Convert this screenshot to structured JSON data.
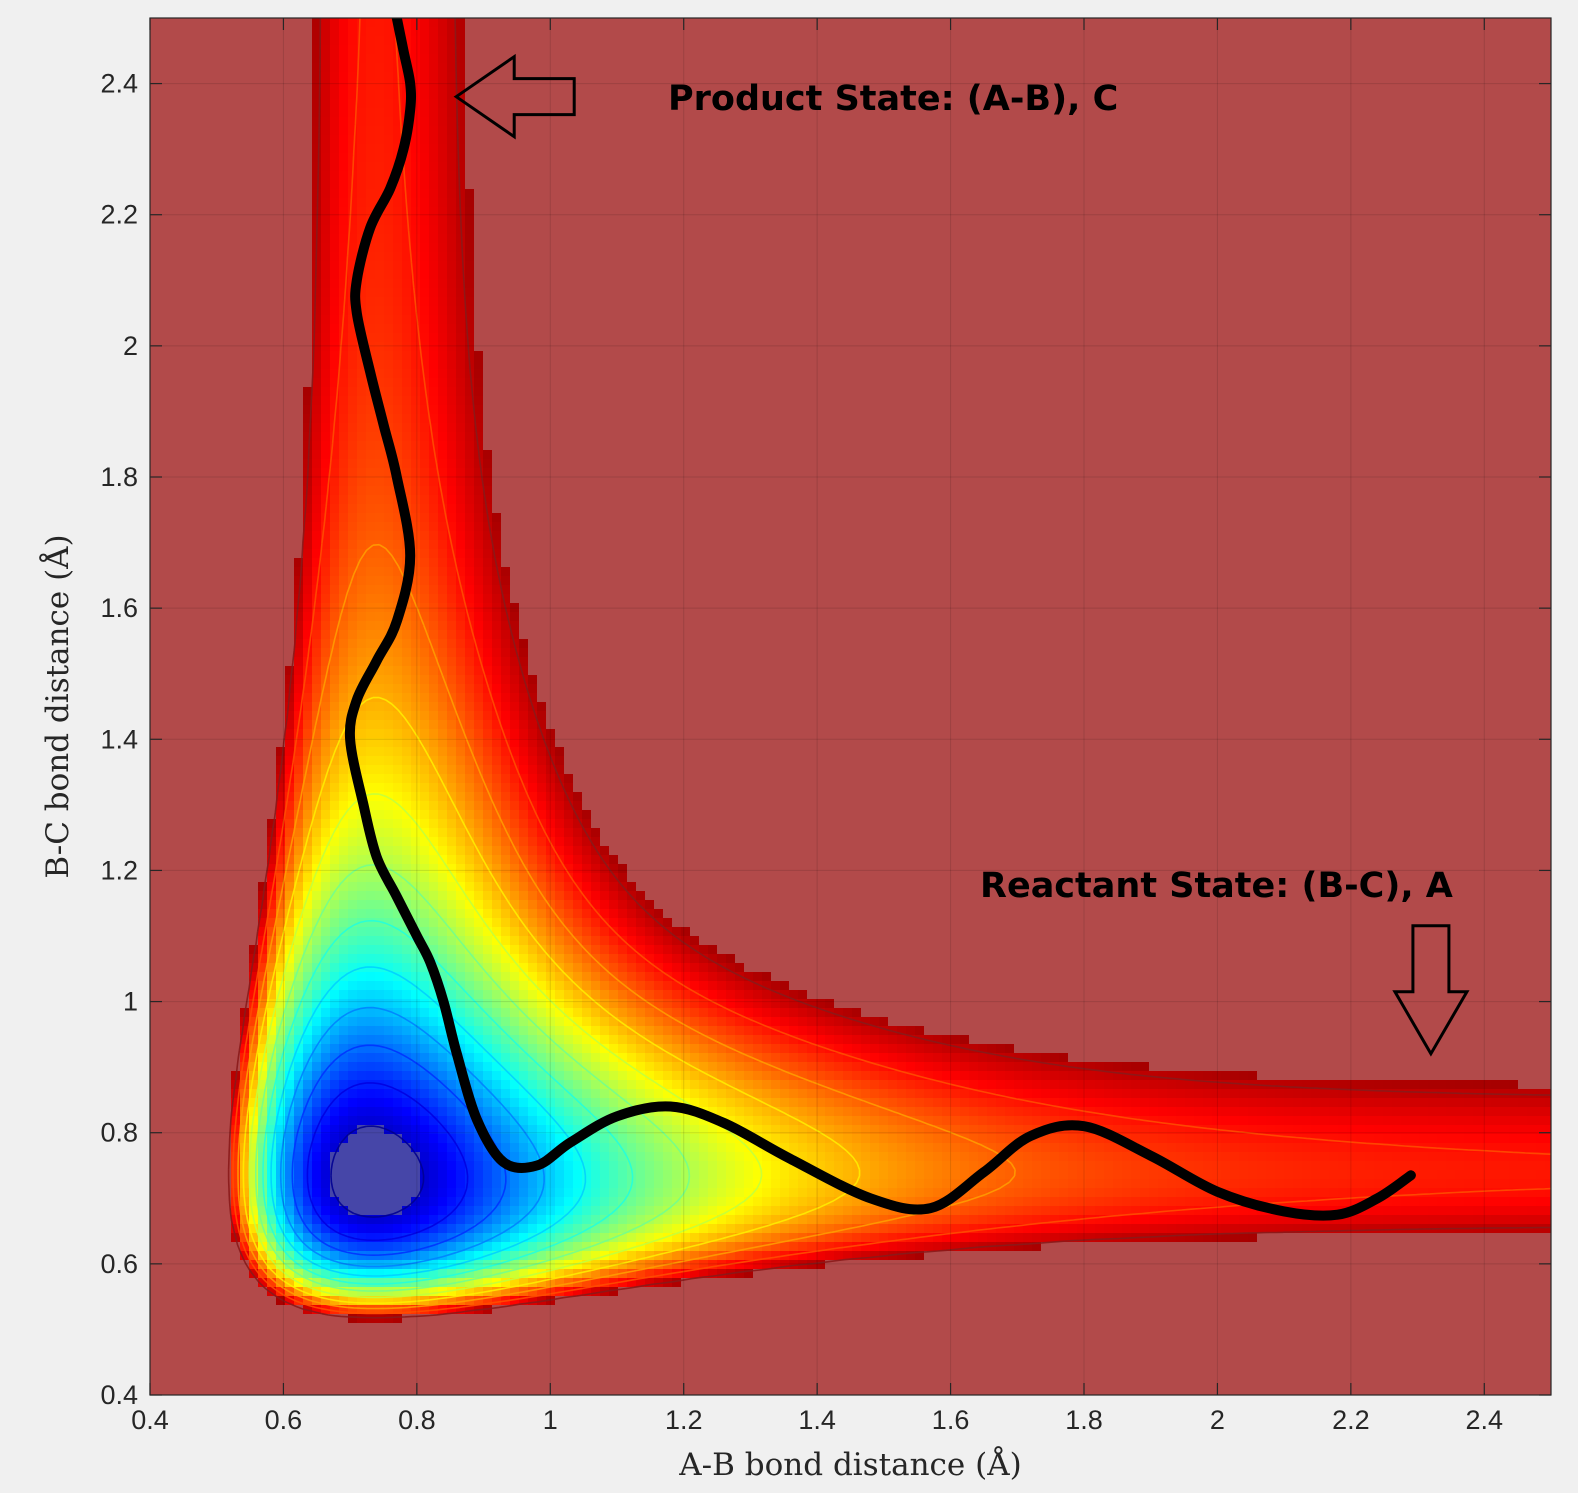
{
  "chart_data": {
    "type": "heatmap",
    "title": "",
    "xlabel": "A-B bond distance (Å)",
    "ylabel": "B-C bond distance (Å)",
    "xlim": [
      0.4,
      2.5
    ],
    "ylim": [
      0.4,
      2.5
    ],
    "x_ticks": [
      0.4,
      0.6,
      0.8,
      1.0,
      1.2,
      1.4,
      1.6,
      1.8,
      2.0,
      2.2,
      2.4
    ],
    "y_ticks": [
      0.4,
      0.6,
      0.8,
      1.0,
      1.2,
      1.4,
      1.6,
      1.8,
      2.0,
      2.2,
      2.4
    ],
    "x_tick_labels": [
      "0.4",
      "0.6",
      "0.8",
      "1",
      "1.2",
      "1.4",
      "1.6",
      "1.8",
      "2",
      "2.2",
      "2.4"
    ],
    "y_tick_labels": [
      "0.4",
      "0.6",
      "0.8",
      "1",
      "1.2",
      "1.4",
      "1.6",
      "1.8",
      "2",
      "2.2",
      "2.4"
    ],
    "colormap": "jet",
    "grid": true,
    "colorbar": false,
    "annotations": [
      {
        "text": "Product State: (A-B), C",
        "arrow": "left",
        "at": [
          0.85,
          2.38
        ]
      },
      {
        "text": "Reactant State: (B-C), A",
        "arrow": "down",
        "at": [
          2.32,
          0.89
        ]
      }
    ],
    "trajectory": {
      "color": "#000000",
      "x": [
        2.29,
        2.24,
        2.18,
        2.1,
        2.0,
        1.9,
        1.8,
        1.72,
        1.65,
        1.57,
        1.48,
        1.36,
        1.26,
        1.18,
        1.1,
        1.03,
        0.98,
        0.93,
        0.89,
        0.86,
        0.84,
        0.82,
        0.8,
        0.77,
        0.74,
        0.72,
        0.7,
        0.71,
        0.74,
        0.77,
        0.79,
        0.77,
        0.75,
        0.73,
        0.71,
        0.71,
        0.73,
        0.76,
        0.78,
        0.79,
        0.79,
        0.78,
        0.77
      ],
      "y": [
        0.735,
        0.7,
        0.675,
        0.68,
        0.71,
        0.765,
        0.81,
        0.795,
        0.74,
        0.685,
        0.7,
        0.76,
        0.815,
        0.84,
        0.825,
        0.785,
        0.75,
        0.755,
        0.82,
        0.92,
        1.0,
        1.06,
        1.1,
        1.16,
        1.22,
        1.3,
        1.4,
        1.46,
        1.52,
        1.58,
        1.68,
        1.8,
        1.88,
        1.96,
        2.05,
        2.1,
        2.18,
        2.24,
        2.3,
        2.36,
        2.4,
        2.45,
        2.5
      ]
    }
  }
}
